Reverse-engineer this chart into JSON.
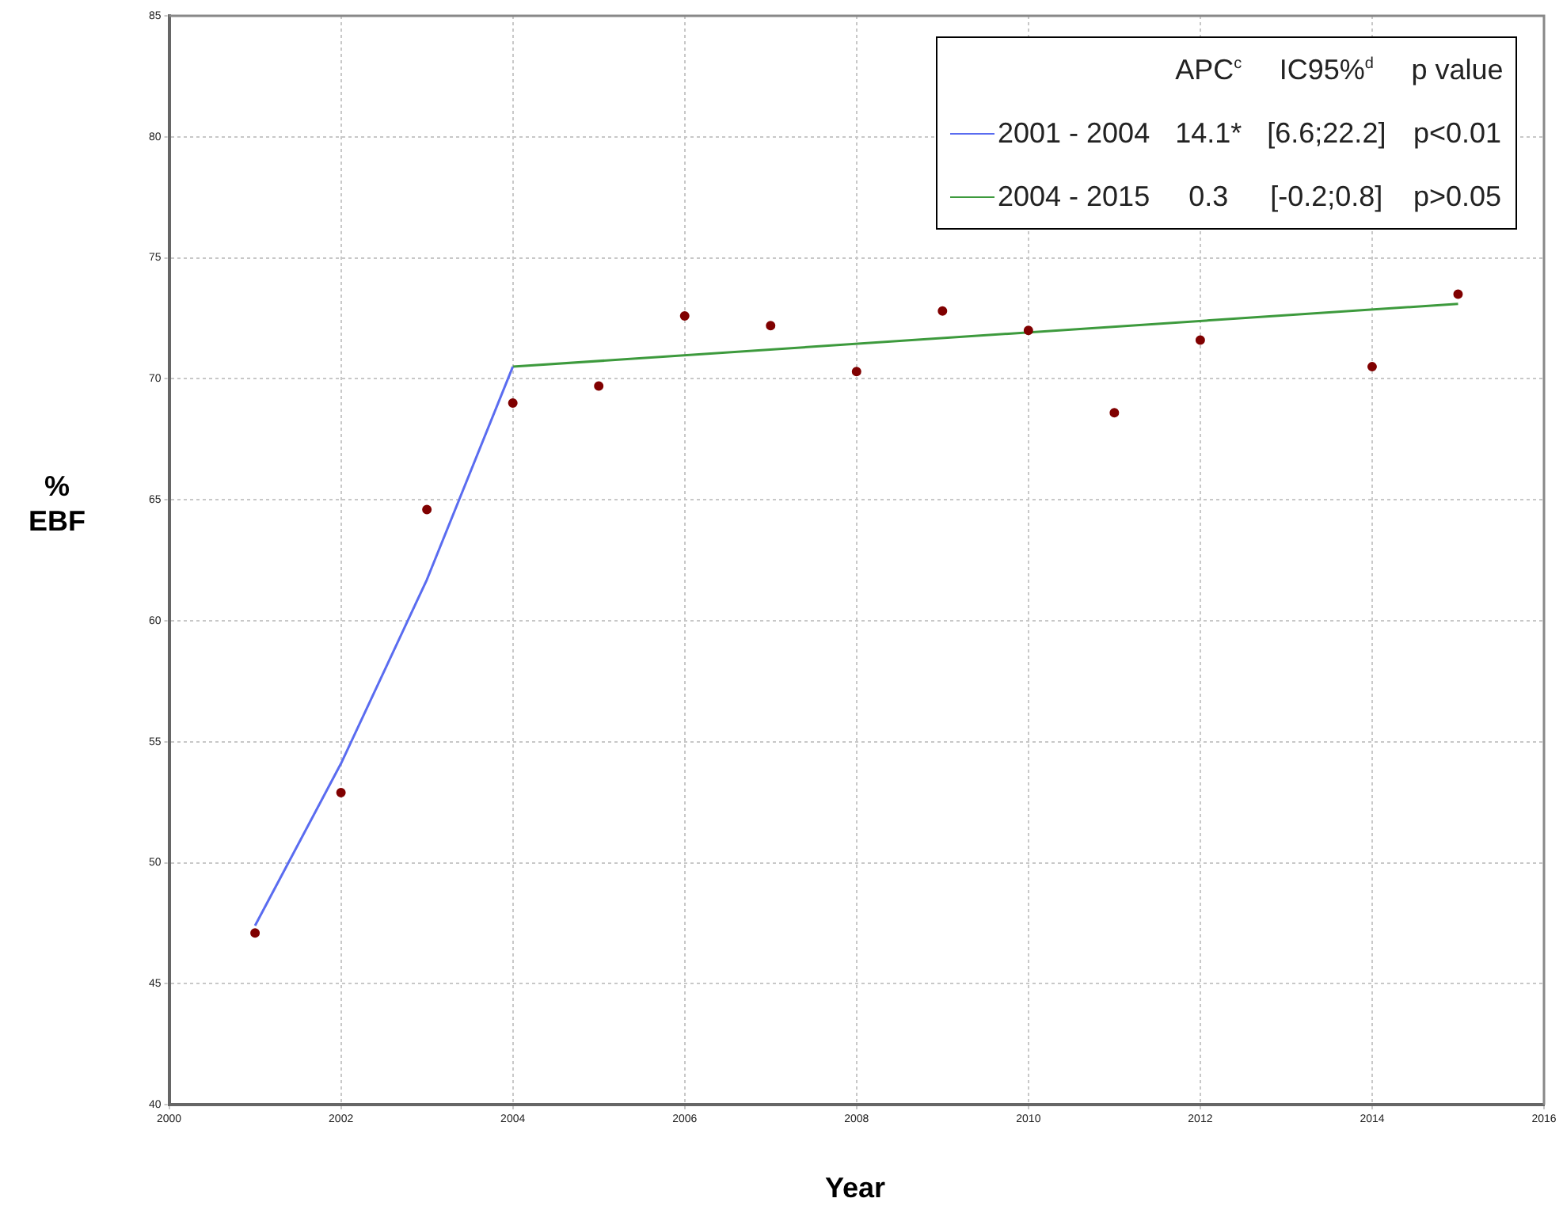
{
  "chart_data": {
    "type": "scatter",
    "xlabel": "Year",
    "ylabel": "% EBF",
    "xlim": [
      2000,
      2016
    ],
    "xticks": [
      2000,
      2002,
      2004,
      2006,
      2008,
      2010,
      2012,
      2014,
      2016
    ],
    "ylim": [
      40,
      85
    ],
    "yticks": [
      40,
      45,
      50,
      55,
      60,
      65,
      70,
      75,
      80,
      85
    ],
    "grid": true,
    "legend": "top right",
    "marker": "circle",
    "series": [
      {
        "color": "#800000",
        "x": [
          2001,
          2002,
          2003,
          2004,
          2005,
          2006,
          2007,
          2008,
          2009,
          2010,
          2011,
          2012,
          2014,
          2015
        ],
        "values": [
          47.1,
          52.9,
          64.6,
          69.0,
          69.7,
          72.6,
          72.2,
          70.3,
          72.8,
          72.0,
          68.6,
          71.6,
          70.5,
          73.5
        ]
      },
      {
        "type": "line",
        "name": "2001 - 2004",
        "color": "#5a6cf0",
        "marker": "none",
        "x": [
          2001,
          2002,
          2003,
          2004
        ],
        "values": [
          47.4,
          54.1,
          61.7,
          70.5
        ]
      },
      {
        "type": "line",
        "name": "2004 - 2015",
        "color": "#3d9a3d",
        "marker": "none",
        "x": [
          2004,
          2015
        ],
        "values": [
          70.5,
          73.1
        ]
      }
    ],
    "annotations": [
      "APC$^{c}$",
      "IC95%$^{d}$",
      "p value",
      "14.1*",
      "[6.6;22.2]",
      "p<0.01",
      "0.3",
      "[-0.2;0.8]",
      "p>0.05"
    ]
  }
}
